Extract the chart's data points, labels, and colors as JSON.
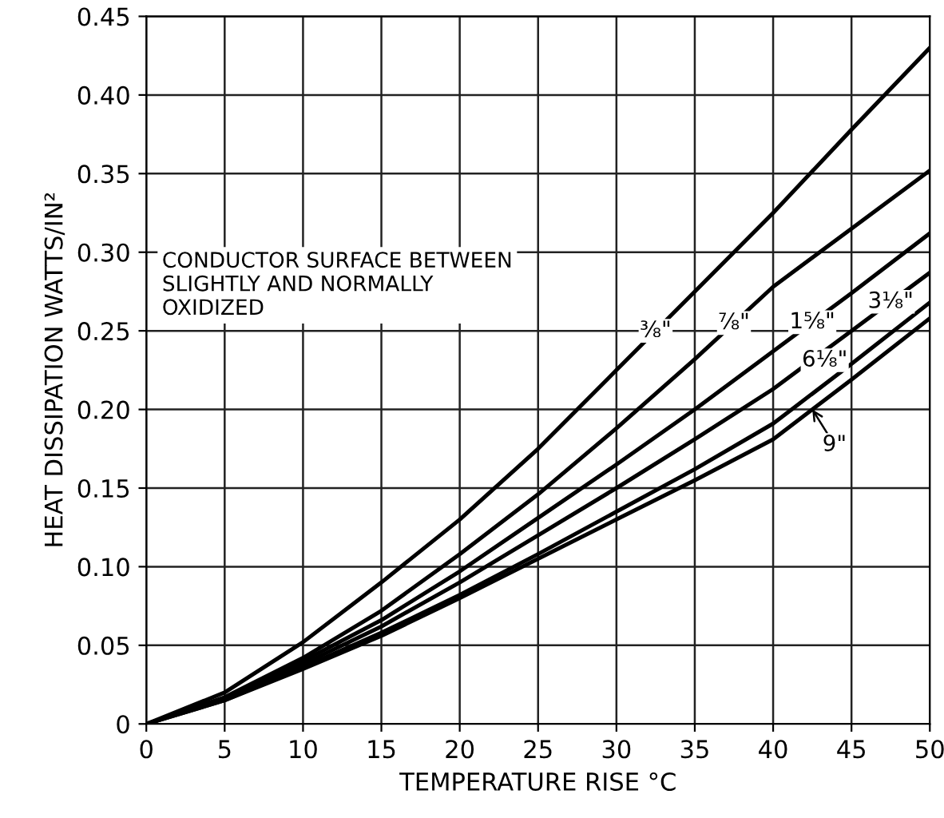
{
  "chart_data": {
    "type": "line",
    "xlabel": "TEMPERATURE RISE °C",
    "ylabel": "HEAT DISSIPATION WATTS/IN²",
    "x": [
      0,
      5,
      10,
      15,
      20,
      25,
      30,
      35,
      40,
      45,
      50
    ],
    "series": [
      {
        "name": "⅜\"",
        "color": "#000000",
        "values": [
          0,
          0.02,
          0.052,
          0.09,
          0.13,
          0.175,
          0.225,
          0.275,
          0.325,
          0.378,
          0.43
        ]
      },
      {
        "name": "⅞\"",
        "color": "#000000",
        "values": [
          0,
          0.017,
          0.042,
          0.072,
          0.108,
          0.146,
          0.188,
          0.232,
          0.278,
          0.315,
          0.352
        ]
      },
      {
        "name": "1⅝\"",
        "color": "#000000",
        "values": [
          0,
          0.016,
          0.04,
          0.066,
          0.097,
          0.131,
          0.165,
          0.2,
          0.237,
          0.274,
          0.312
        ]
      },
      {
        "name": "3⅛\"",
        "color": "#000000",
        "values": [
          0,
          0.016,
          0.038,
          0.062,
          0.09,
          0.12,
          0.15,
          0.181,
          0.213,
          0.25,
          0.287
        ]
      },
      {
        "name": "6⅛\"",
        "color": "#000000",
        "values": [
          0,
          0.015,
          0.036,
          0.058,
          0.082,
          0.108,
          0.135,
          0.162,
          0.191,
          0.229,
          0.268
        ]
      },
      {
        "name": "9\"",
        "color": "#000000",
        "values": [
          0,
          0.015,
          0.035,
          0.056,
          0.08,
          0.105,
          0.13,
          0.155,
          0.181,
          0.219,
          0.258
        ]
      }
    ],
    "xlim": [
      0,
      50
    ],
    "xticks": [
      0,
      5,
      10,
      15,
      20,
      25,
      30,
      35,
      40,
      45,
      50
    ],
    "ylim": [
      0,
      0.45
    ],
    "yticks": [
      0,
      {
        "value": 0.05,
        "label": "0.05"
      },
      {
        "value": 0.1,
        "label": "0.10"
      },
      {
        "value": 0.15,
        "label": "0.15"
      },
      {
        "value": 0.2,
        "label": "0.20"
      },
      {
        "value": 0.25,
        "label": "0.25"
      },
      {
        "value": 0.3,
        "label": "0.30"
      },
      {
        "value": 0.35,
        "label": "0.35"
      },
      {
        "value": 0.4,
        "label": "0.40"
      },
      {
        "value": 0.45,
        "label": "0.45"
      }
    ],
    "grid": true,
    "marker": "none",
    "line_style": "solid",
    "annotations": [
      "CONDUCTOR SURFACE BETWEEN\nSLIGHTLY AND NORMALLY\nOXIDIZED"
    ]
  }
}
